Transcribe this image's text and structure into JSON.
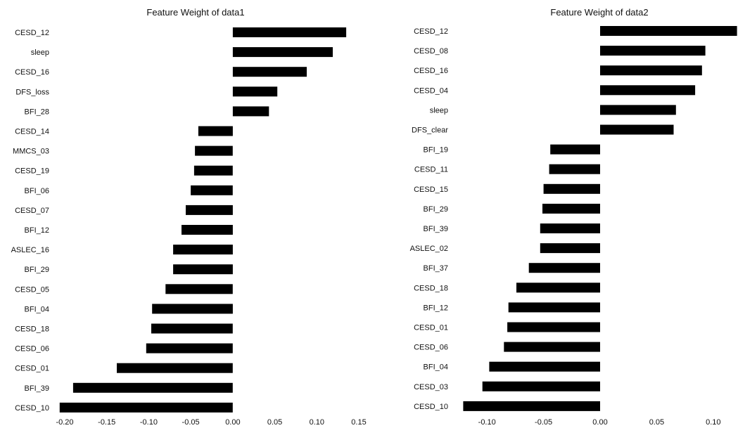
{
  "chart_data": [
    {
      "type": "bar",
      "orientation": "horizontal",
      "title": "Feature Weight of data1",
      "xlabel": "",
      "ylabel": "",
      "xlim": [
        -0.2,
        0.15
      ],
      "xticks": [
        -0.2,
        -0.15,
        -0.1,
        -0.05,
        0.0,
        0.05,
        0.1,
        0.15
      ],
      "xtick_labels": [
        "-0.20",
        "-0.15",
        "-0.10",
        "-0.05",
        "0.00",
        "0.05",
        "0.10",
        "0.15"
      ],
      "grid": false,
      "categories": [
        "CESD_12",
        "sleep",
        "CESD_16",
        "DFS_loss",
        "BFI_28",
        "CESD_14",
        "MMCS_03",
        "CESD_19",
        "BFI_06",
        "CESD_07",
        "BFI_12",
        "ASLEC_16",
        "BFI_29",
        "CESD_05",
        "BFI_04",
        "CESD_18",
        "CESD_06",
        "CESD_01",
        "BFI_39",
        "CESD_10"
      ],
      "values": [
        0.135,
        0.119,
        0.088,
        0.053,
        0.043,
        -0.041,
        -0.045,
        -0.046,
        -0.05,
        -0.056,
        -0.061,
        -0.071,
        -0.071,
        -0.08,
        -0.096,
        -0.097,
        -0.103,
        -0.138,
        -0.19,
        -0.206
      ],
      "bar_color": "#000000"
    },
    {
      "type": "bar",
      "orientation": "horizontal",
      "title": "Feature Weight of data2",
      "xlabel": "",
      "ylabel": "",
      "xlim": [
        -0.12,
        0.12
      ],
      "xticks": [
        -0.1,
        -0.05,
        0.0,
        0.05,
        0.1
      ],
      "xtick_labels": [
        "-0.10",
        "-0.05",
        "0.00",
        "0.05",
        "0.10"
      ],
      "grid": false,
      "categories": [
        "CESD_12",
        "CESD_08",
        "CESD_16",
        "CESD_04",
        "sleep",
        "DFS_clear",
        "BFI_19",
        "CESD_11",
        "CESD_15",
        "BFI_29",
        "BFI_39",
        "ASLEC_02",
        "BFI_37",
        "CESD_18",
        "BFI_12",
        "CESD_01",
        "CESD_06",
        "BFI_04",
        "CESD_03",
        "CESD_10"
      ],
      "values": [
        0.121,
        0.093,
        0.09,
        0.084,
        0.067,
        0.065,
        -0.044,
        -0.045,
        -0.05,
        -0.051,
        -0.053,
        -0.053,
        -0.063,
        -0.074,
        -0.081,
        -0.082,
        -0.085,
        -0.098,
        -0.104,
        -0.121
      ],
      "bar_color": "#000000"
    }
  ]
}
